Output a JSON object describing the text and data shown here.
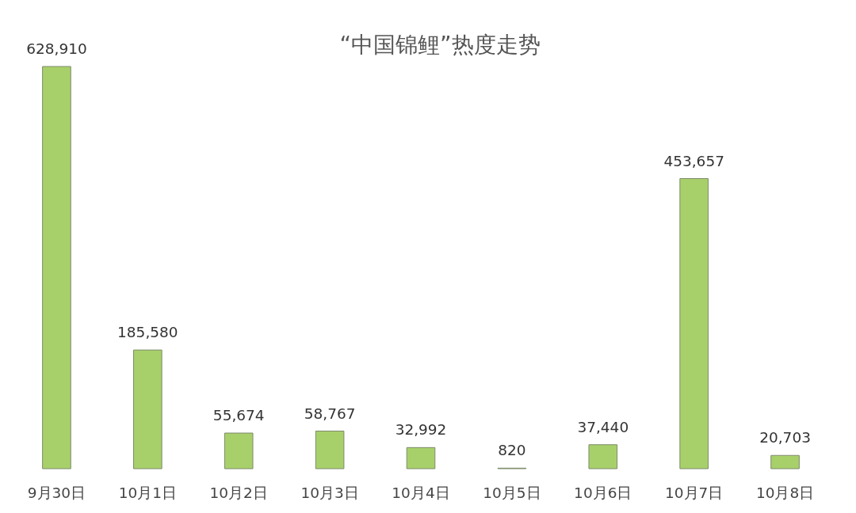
{
  "chart_data": {
    "type": "bar",
    "title": "“中国锦鲤”热度走势",
    "categories": [
      "9月30日",
      "10月1日",
      "10月2日",
      "10月3日",
      "10月4日",
      "10月5日",
      "10月6日",
      "10月7日",
      "10月8日"
    ],
    "values": [
      628910,
      185580,
      55674,
      58767,
      32992,
      820,
      37440,
      453657,
      20703
    ],
    "value_labels": [
      "628,910",
      "185,580",
      "55,674",
      "58,767",
      "32,992",
      "820",
      "37,440",
      "453,657",
      "20,703"
    ],
    "color": "#a8d06a"
  }
}
